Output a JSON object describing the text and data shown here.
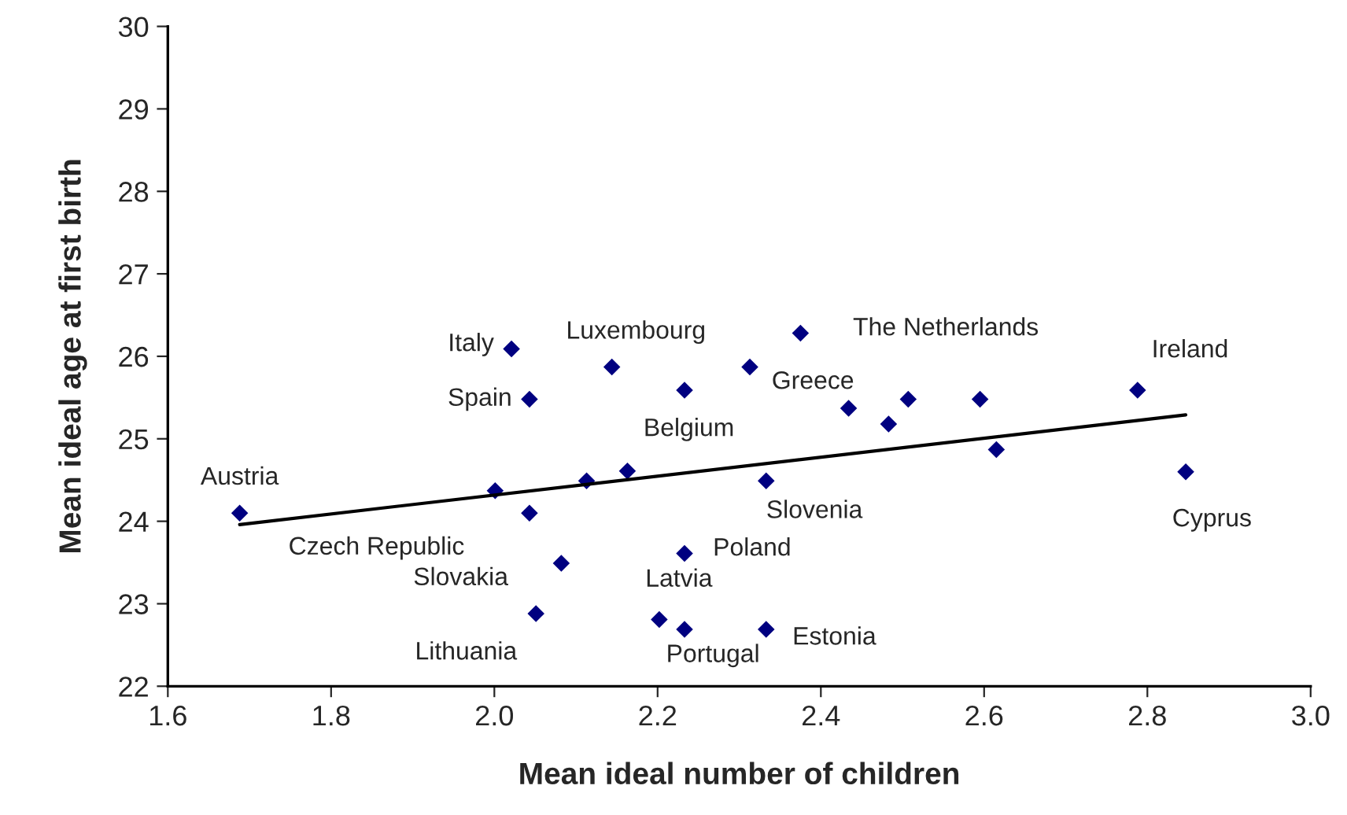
{
  "chart_data": {
    "type": "scatter",
    "xlabel": "Mean ideal number of children",
    "ylabel": "Mean ideal age at first birth",
    "xlim": [
      1.6,
      3.0
    ],
    "xticks": [
      {
        "value": 1.6,
        "label": "1.6"
      },
      {
        "value": 1.8,
        "label": "1.8"
      },
      {
        "value": 2.0,
        "label": "2.0"
      },
      {
        "value": 2.2,
        "label": "2.2"
      },
      {
        "value": 2.4,
        "label": "2.4"
      },
      {
        "value": 2.6,
        "label": "2.6"
      },
      {
        "value": 2.8,
        "label": "2.8"
      },
      {
        "value": 3.0,
        "label": "3.0"
      }
    ],
    "ylim": [
      22,
      30
    ],
    "yticks": [
      22,
      23,
      24,
      25,
      26,
      27,
      28,
      29,
      30
    ],
    "grid": false,
    "legend": false,
    "marker": "diamond",
    "series": [
      {
        "color": "#000080",
        "x": [
          1.688,
          2.021,
          2.144,
          2.043,
          2.233,
          2.313,
          2.001,
          2.043,
          2.113,
          2.163,
          2.082,
          2.233,
          2.051,
          2.202,
          2.233,
          2.375,
          2.333,
          2.333,
          2.434,
          2.483,
          2.507,
          2.595,
          2.615,
          2.788,
          2.847
        ],
        "values": [
          24.1,
          26.09,
          25.87,
          25.48,
          25.59,
          25.87,
          24.37,
          24.1,
          24.49,
          24.61,
          23.49,
          23.61,
          22.88,
          22.81,
          22.69,
          26.28,
          22.69,
          24.49,
          25.37,
          25.18,
          25.48,
          25.48,
          24.87,
          25.59,
          24.6
        ]
      },
      {
        "type": "line",
        "color": "#000000",
        "marker": "none",
        "line_style": "solid",
        "x": [
          1.688,
          2.847
        ],
        "values": [
          23.96,
          25.29
        ]
      }
    ],
    "annotations": [
      {
        "text": "Austria",
        "x": 1.688,
        "y": 24.1
      },
      {
        "text": "Italy",
        "x": 2.021,
        "y": 26.09
      },
      {
        "text": "Luxembourg",
        "x": 2.144,
        "y": 25.87
      },
      {
        "text": "Spain",
        "x": 2.043,
        "y": 25.48
      },
      {
        "text": "Belgium",
        "x": 2.233,
        "y": 25.59
      },
      {
        "text": "Greece",
        "x": 2.313,
        "y": 25.87
      },
      {
        "text": "The Netherlands",
        "x": 2.375,
        "y": 26.28
      },
      {
        "text": "Ireland",
        "x": 2.788,
        "y": 25.59
      },
      {
        "text": "Cyprus",
        "x": 2.847,
        "y": 24.6
      },
      {
        "text": "Slovenia",
        "x": 2.333,
        "y": 24.49
      },
      {
        "text": "Czech Republic",
        "x": 2.043,
        "y": 24.1
      },
      {
        "text": "Slovakia",
        "x": 2.082,
        "y": 23.49
      },
      {
        "text": "Poland",
        "x": 2.233,
        "y": 23.61
      },
      {
        "text": "Lithuania",
        "x": 2.051,
        "y": 22.88
      },
      {
        "text": "Latvia",
        "x": 2.202,
        "y": 22.81
      },
      {
        "text": "Portugal",
        "x": 2.233,
        "y": 22.69
      },
      {
        "text": "Estonia",
        "x": 2.333,
        "y": 22.69
      }
    ]
  }
}
